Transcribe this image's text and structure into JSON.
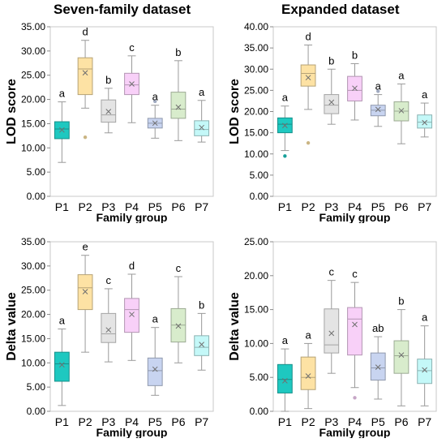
{
  "headers": {
    "left": "Seven-family dataset",
    "right": "Expanded dataset"
  },
  "chart_data": [
    {
      "type": "box",
      "title": "",
      "xlabel": "Family group",
      "ylabel": "LOD score",
      "ylim": [
        0,
        35
      ],
      "yticks": [
        "0.00",
        "5.00",
        "10.00",
        "15.00",
        "20.00",
        "25.00",
        "30.00",
        "35.00"
      ],
      "grid": false,
      "legend": "none",
      "categories": [
        "P1",
        "P2",
        "P3",
        "P4",
        "P5",
        "P6",
        "P7"
      ],
      "colors": [
        "#1ec8c0",
        "#fde2a4",
        "#e4e4e4",
        "#f8d0f8",
        "#c8d4f0",
        "#d8eccc",
        "#c4f8f8"
      ],
      "boxes": [
        {
          "min": 7.0,
          "q1": 11.9,
          "median": 13.9,
          "mean": 13.7,
          "q3": 15.4,
          "max": 19.5,
          "outliers": [],
          "letter": "a"
        },
        {
          "min": 18.2,
          "q1": 21.0,
          "median": 26.3,
          "mean": 25.5,
          "q3": 28.6,
          "max": 32.2,
          "outliers": [
            12.2
          ],
          "letter": "d"
        },
        {
          "min": 13.1,
          "q1": 15.3,
          "median": 16.8,
          "mean": 17.5,
          "q3": 19.9,
          "max": 22.3,
          "outliers": [],
          "letter": "b"
        },
        {
          "min": 15.2,
          "q1": 21.0,
          "median": 23.0,
          "mean": 23.2,
          "q3": 25.4,
          "max": 29.0,
          "outliers": [],
          "letter": "c"
        },
        {
          "min": 12.0,
          "q1": 14.1,
          "median": 15.1,
          "mean": 15.1,
          "q3": 16.1,
          "max": 18.8,
          "outliers": [
            19.6
          ],
          "letter": "a"
        },
        {
          "min": 11.5,
          "q1": 16.1,
          "median": 18.0,
          "mean": 18.4,
          "q3": 21.5,
          "max": 28.0,
          "outliers": [],
          "letter": "b"
        },
        {
          "min": 11.2,
          "q1": 12.5,
          "median": 13.8,
          "mean": 14.2,
          "q3": 15.6,
          "max": 19.8,
          "outliers": [],
          "letter": "a"
        }
      ]
    },
    {
      "type": "box",
      "title": "",
      "xlabel": "Family group",
      "ylabel": "LOD score",
      "ylim": [
        0,
        40
      ],
      "yticks": [
        "0.00",
        "5.00",
        "10.00",
        "15.00",
        "20.00",
        "25.00",
        "30.00",
        "35.00",
        "40.00"
      ],
      "grid": false,
      "legend": "none",
      "categories": [
        "P1",
        "P2",
        "P3",
        "P4",
        "P5",
        "P6",
        "P7"
      ],
      "colors": [
        "#1ec8c0",
        "#fde2a4",
        "#e4e4e4",
        "#f8d0f8",
        "#c8d4f0",
        "#d8eccc",
        "#c4f8f8"
      ],
      "boxes": [
        {
          "min": 10.8,
          "q1": 15.0,
          "median": 17.0,
          "mean": 16.7,
          "q3": 18.5,
          "max": 21.3,
          "outliers": [
            9.5
          ],
          "letter": "a"
        },
        {
          "min": 20.5,
          "q1": 26.0,
          "median": 29.0,
          "mean": 28.0,
          "q3": 31.0,
          "max": 35.7,
          "outliers": [
            12.6
          ],
          "letter": "d"
        },
        {
          "min": 17.0,
          "q1": 19.5,
          "median": 21.5,
          "mean": 22.2,
          "q3": 24.0,
          "max": 30.0,
          "outliers": [],
          "letter": "b"
        },
        {
          "min": 18.0,
          "q1": 22.5,
          "median": 25.0,
          "mean": 25.5,
          "q3": 28.3,
          "max": 31.3,
          "outliers": [],
          "letter": "b"
        },
        {
          "min": 16.5,
          "q1": 19.0,
          "median": 20.3,
          "mean": 20.5,
          "q3": 21.5,
          "max": 24.0,
          "outliers": [
            24.8
          ],
          "letter": "a"
        },
        {
          "min": 12.4,
          "q1": 17.8,
          "median": 20.1,
          "mean": 20.2,
          "q3": 22.3,
          "max": 26.5,
          "outliers": [],
          "letter": "a"
        },
        {
          "min": 14.0,
          "q1": 16.1,
          "median": 17.5,
          "mean": 17.4,
          "q3": 19.2,
          "max": 22.0,
          "outliers": [],
          "letter": "a"
        }
      ]
    },
    {
      "type": "box",
      "title": "",
      "xlabel": "Family group",
      "ylabel": "Delta value",
      "ylim": [
        0,
        35
      ],
      "yticks": [
        "0.00",
        "5.00",
        "10.00",
        "15.00",
        "20.00",
        "25.00",
        "30.00",
        "35.00"
      ],
      "grid": false,
      "legend": "none",
      "categories": [
        "P1",
        "P2",
        "P3",
        "P4",
        "P5",
        "P6",
        "P7"
      ],
      "colors": [
        "#1ec8c0",
        "#fde2a4",
        "#e4e4e4",
        "#f8d0f8",
        "#c8d4f0",
        "#d8eccc",
        "#c4f8f8"
      ],
      "boxes": [
        {
          "min": 1.2,
          "q1": 6.2,
          "median": 9.8,
          "mean": 9.6,
          "q3": 12.2,
          "max": 17.0,
          "outliers": [],
          "letter": "a"
        },
        {
          "min": 12.2,
          "q1": 21.0,
          "median": 25.5,
          "mean": 24.7,
          "q3": 28.2,
          "max": 32.2,
          "outliers": [],
          "letter": "e"
        },
        {
          "min": 10.2,
          "q1": 14.2,
          "median": 16.0,
          "mean": 16.8,
          "q3": 20.2,
          "max": 25.3,
          "outliers": [],
          "letter": "c"
        },
        {
          "min": 10.5,
          "q1": 16.3,
          "median": 21.0,
          "mean": 20.0,
          "q3": 23.3,
          "max": 28.3,
          "outliers": [],
          "letter": "d"
        },
        {
          "min": 3.3,
          "q1": 5.3,
          "median": 8.4,
          "mean": 8.7,
          "q3": 11.0,
          "max": 17.3,
          "outliers": [],
          "letter": "a"
        },
        {
          "min": 10.0,
          "q1": 14.3,
          "median": 17.8,
          "mean": 17.6,
          "q3": 21.2,
          "max": 27.8,
          "outliers": [],
          "letter": "c"
        },
        {
          "min": 8.5,
          "q1": 11.5,
          "median": 13.2,
          "mean": 13.8,
          "q3": 15.6,
          "max": 20.2,
          "outliers": [],
          "letter": "b"
        }
      ]
    },
    {
      "type": "box",
      "title": "",
      "xlabel": "Family group",
      "ylabel": "Delta value",
      "ylim": [
        0,
        25
      ],
      "yticks": [
        "0.00",
        "5.00",
        "10.00",
        "15.00",
        "20.00",
        "25.00"
      ],
      "grid": false,
      "legend": "none",
      "categories": [
        "P1",
        "P2",
        "P3",
        "P4",
        "P5",
        "P6",
        "P7"
      ],
      "colors": [
        "#1ec8c0",
        "#fde2a4",
        "#e4e4e4",
        "#f8d0f8",
        "#c8d4f0",
        "#d8eccc",
        "#c4f8f8"
      ],
      "boxes": [
        {
          "min": 0.0,
          "q1": 2.7,
          "median": 4.7,
          "mean": 4.5,
          "q3": 6.9,
          "max": 9.2,
          "outliers": [],
          "letter": "a"
        },
        {
          "min": 0.4,
          "q1": 3.2,
          "median": 5.0,
          "mean": 5.2,
          "q3": 8.0,
          "max": 10.0,
          "outliers": [],
          "letter": "a"
        },
        {
          "min": 5.6,
          "q1": 8.6,
          "median": 9.8,
          "mean": 11.5,
          "q3": 15.1,
          "max": 19.3,
          "outliers": [],
          "letter": "c"
        },
        {
          "min": 3.5,
          "q1": 8.3,
          "median": 13.6,
          "mean": 12.8,
          "q3": 15.3,
          "max": 19.0,
          "outliers": [
            2.0
          ],
          "letter": "c"
        },
        {
          "min": 1.8,
          "q1": 4.6,
          "median": 6.4,
          "mean": 6.5,
          "q3": 8.6,
          "max": 11.0,
          "outliers": [],
          "letter": "ab"
        },
        {
          "min": 0.8,
          "q1": 5.6,
          "median": 8.2,
          "mean": 8.3,
          "q3": 10.4,
          "max": 15.0,
          "outliers": [],
          "letter": "b"
        },
        {
          "min": 0.8,
          "q1": 4.1,
          "median": 6.0,
          "mean": 6.1,
          "q3": 7.7,
          "max": 12.6,
          "outliers": [],
          "letter": "a"
        }
      ]
    }
  ]
}
